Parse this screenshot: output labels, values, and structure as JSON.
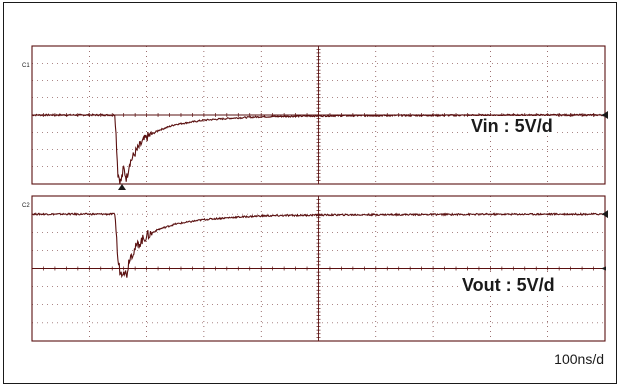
{
  "chart_data": [
    {
      "type": "line",
      "channel_marker": "C1",
      "annotation": "Vin : 5V/d",
      "x_scale": "100ns/d",
      "x_divisions": 10,
      "y_divisions": 8,
      "grid": true,
      "line_color": "#5a1010",
      "series": [
        {
          "x": [
            0,
            0.5,
            1.0,
            1.45,
            1.5,
            1.55,
            1.6,
            1.65,
            1.7,
            1.8,
            1.9,
            2.0,
            2.2,
            2.5,
            3.0,
            3.5,
            4.0,
            5.0,
            6.0,
            7.0,
            8.0,
            9.0,
            10.0
          ],
          "y": [
            4.0,
            4.0,
            4.0,
            4.0,
            0.6,
            0.1,
            0.9,
            0.3,
            1.2,
            1.8,
            2.3,
            2.7,
            3.1,
            3.45,
            3.7,
            3.82,
            3.9,
            3.95,
            3.97,
            3.98,
            3.99,
            4.0,
            4.0
          ]
        }
      ]
    },
    {
      "type": "line",
      "channel_marker": "C2",
      "annotation": "Vout  : 5V/d",
      "x_scale": "100ns/d",
      "x_divisions": 10,
      "y_divisions": 8,
      "grid": true,
      "line_color": "#5a1010",
      "series": [
        {
          "x": [
            0,
            0.5,
            1.0,
            1.45,
            1.5,
            1.55,
            1.6,
            1.65,
            1.7,
            1.8,
            1.9,
            2.0,
            2.2,
            2.5,
            3.0,
            3.5,
            4.0,
            5.0,
            6.0,
            7.0,
            8.0,
            9.0,
            10.0
          ],
          "y": [
            7.0,
            7.0,
            7.0,
            7.0,
            4.4,
            3.7,
            4.0,
            3.6,
            4.6,
            5.1,
            5.5,
            5.8,
            6.15,
            6.45,
            6.7,
            6.82,
            6.9,
            6.95,
            6.97,
            6.98,
            6.99,
            7.0,
            7.0
          ]
        }
      ]
    }
  ],
  "labels": {
    "vin": "Vin : 5V/d",
    "vout": "Vout  : 5V/d",
    "timebase": "100ns/d",
    "c1": "C1",
    "c2": "C2"
  },
  "colors": {
    "trace": "#5a1010",
    "grid": "#5a1010",
    "frame": "#1a1a1a"
  }
}
